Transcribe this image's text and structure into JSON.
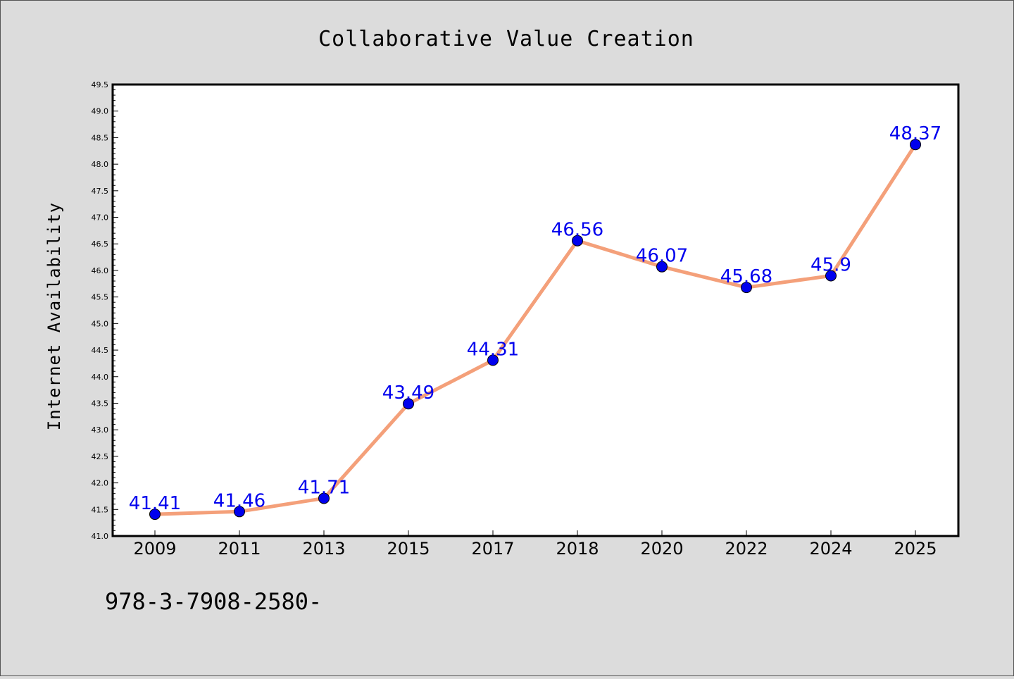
{
  "chart_data": {
    "type": "line",
    "title": "Collaborative Value Creation",
    "xlabel": "",
    "ylabel": "Internet Availability",
    "categories": [
      "2009",
      "2011",
      "2013",
      "2015",
      "2017",
      "2018",
      "2020",
      "2022",
      "2024",
      "2025"
    ],
    "values": [
      41.41,
      41.46,
      41.71,
      43.49,
      44.31,
      46.56,
      46.07,
      45.68,
      45.9,
      48.37
    ],
    "value_labels": [
      "41.41",
      "41.46",
      "41.71",
      "43.49",
      "44.31",
      "46.56",
      "46.07",
      "45.68",
      "45.9",
      "48.37"
    ],
    "ylim": [
      41.0,
      49.5
    ],
    "yticks": [
      "41.0",
      "41.5",
      "42.0",
      "42.5",
      "43.0",
      "43.5",
      "44.0",
      "44.5",
      "45.0",
      "45.5",
      "46.0",
      "46.5",
      "47.0",
      "47.5",
      "48.0",
      "48.5",
      "49.0",
      "49.5"
    ],
    "grid": false,
    "legend": "none",
    "line_color": "#f4a07a",
    "marker_color": "#0000ee",
    "label_color": "#0000ee"
  },
  "footer": {
    "text": "978-3-7908-2580-"
  }
}
